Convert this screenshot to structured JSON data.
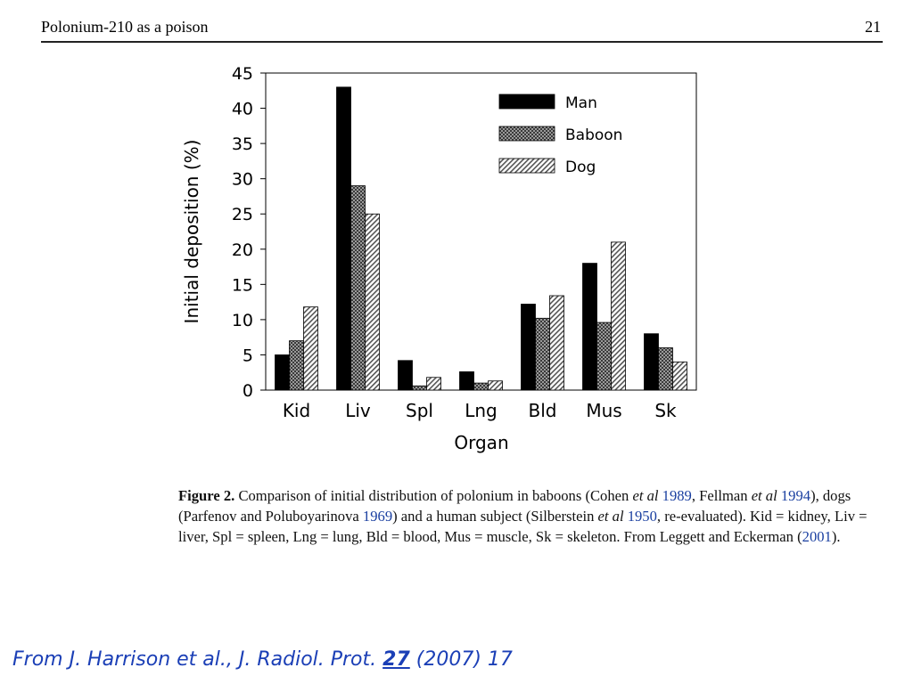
{
  "header": {
    "title": "Polonium-210 as a poison",
    "page_number": "21"
  },
  "chart_data": {
    "type": "bar",
    "categories": [
      "Kid",
      "Liv",
      "Spl",
      "Lng",
      "Bld",
      "Mus",
      "Sk"
    ],
    "series": [
      {
        "name": "Man",
        "values": [
          5.0,
          43.0,
          4.2,
          2.6,
          12.2,
          18.0,
          8.0
        ]
      },
      {
        "name": "Baboon",
        "values": [
          7.0,
          29.0,
          0.6,
          1.0,
          10.2,
          9.6,
          6.0
        ]
      },
      {
        "name": "Dog",
        "values": [
          11.8,
          25.0,
          1.8,
          1.3,
          13.4,
          21.0,
          4.0
        ]
      }
    ],
    "xlabel": "Organ",
    "ylabel": "Initial deposition (%)",
    "ylim": [
      0,
      45
    ],
    "yticks": [
      "0",
      "5",
      "10",
      "15",
      "20",
      "25",
      "30",
      "35",
      "40",
      "45"
    ],
    "legend_position": "top-right",
    "grid": false
  },
  "caption": {
    "label": "Figure 2.",
    "t1": " Comparison of initial distribution of polonium in baboons (Cohen ",
    "etal1": "et al",
    "y1": " 1989",
    "t2": ", Fellman ",
    "etal2": "et al",
    "y2": " 1994",
    "t3": "), dogs (Parfenov and Poluboyarinova ",
    "y3": "1969",
    "t4": ") and a human subject (Silberstein ",
    "etal3": "et al",
    "y4": " 1950",
    "t5": ", re-evaluated). Kid = kidney, Liv = liver, Spl = spleen, Lng = lung, Bld = blood, Mus = muscle, Sk = skeleton. From Leggett and Eckerman (",
    "y5": "2001",
    "t6": ")."
  },
  "footer": {
    "prefix": "From J. Harrison et al., J. Radiol. Prot. ",
    "volume": "27",
    "suffix": " (2007) 17"
  }
}
